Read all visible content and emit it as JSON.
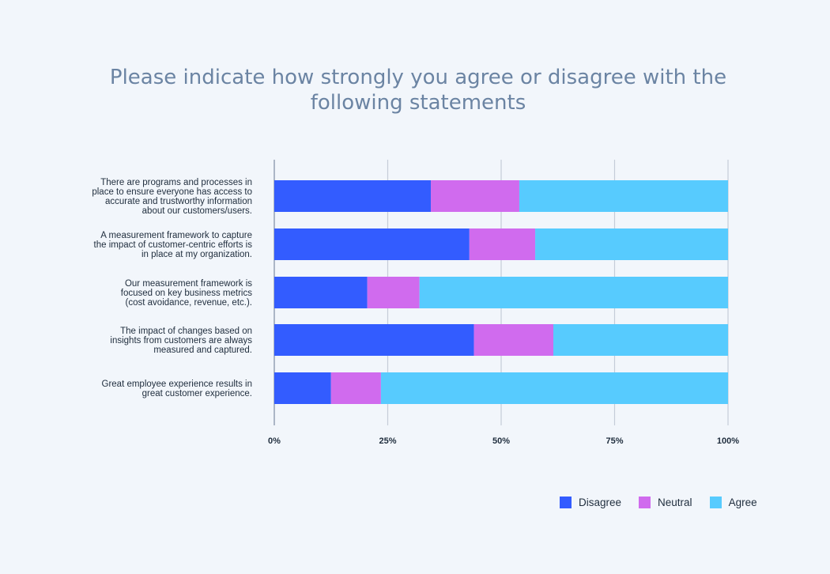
{
  "chart_data": {
    "type": "bar",
    "orientation": "horizontal",
    "stacked": true,
    "title": "Please indicate how strongly you agree or disagree with the following statements",
    "categories": [
      "There are programs and processes in place to ensure everyone has access to accurate and trustworthy information about our customers/users.",
      "A measurement framework to capture the impact of customer-centric efforts is in place at my organization.",
      "Our measurement framework is focused on key business metrics (cost avoidance, revenue, etc.).",
      "The impact of changes based on insights from customers are always measured and captured.",
      "Great employee experience results in great customer experience."
    ],
    "category_lines": [
      [
        "There are programs and processes in",
        "place to ensure everyone has access to",
        "accurate and trustworthy information",
        "about our customers/users."
      ],
      [
        "A measurement framework to capture",
        "the impact of customer-centric efforts is",
        "in place at my organization."
      ],
      [
        "Our measurement framework is",
        "focused on key business metrics",
        "(cost avoidance, revenue, etc.)."
      ],
      [
        "The impact of changes based on",
        "insights from customers are always",
        "measured and captured."
      ],
      [
        "Great employee experience results in",
        "great customer experience."
      ]
    ],
    "series": [
      {
        "name": "Disagree",
        "color": "#335cff",
        "values": [
          34.5,
          43,
          20.5,
          44,
          12.5
        ]
      },
      {
        "name": "Neutral",
        "color": "#d06bee",
        "values": [
          19.5,
          14.5,
          11.5,
          17.5,
          11
        ]
      },
      {
        "name": "Agree",
        "color": "#57cbfe",
        "values": [
          46,
          42.5,
          68,
          38.5,
          76.5
        ]
      }
    ],
    "x_ticks": [
      "0%",
      "25%",
      "50%",
      "75%",
      "100%"
    ],
    "xlim": [
      0,
      100
    ],
    "grid": true,
    "legend_position": "bottom-right"
  },
  "legend": [
    {
      "label": "Disagree",
      "color": "#335cff"
    },
    {
      "label": "Neutral",
      "color": "#d06bee"
    },
    {
      "label": "Agree",
      "color": "#57cbfe"
    }
  ]
}
